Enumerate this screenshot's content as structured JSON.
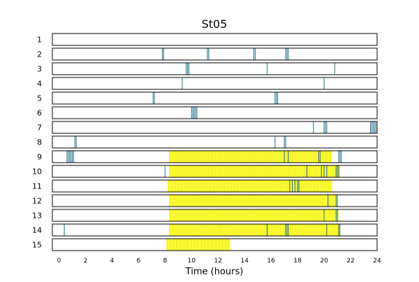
{
  "chart_data": {
    "type": "timeline",
    "title": "St05",
    "xlabel": "Time (hours)",
    "ylabel": "",
    "xlim": [
      -0.5,
      24
    ],
    "x_ticks": [
      0,
      2,
      4,
      6,
      8,
      10,
      12,
      14,
      16,
      18,
      20,
      22,
      24
    ],
    "grid": false,
    "colors": {
      "event": "#1f6f8b",
      "span": "#ffff33",
      "frame": "#000000"
    },
    "rows": [
      {
        "label": "1",
        "events": [],
        "spans": []
      },
      {
        "label": "2",
        "events": [
          7.8,
          7.9,
          11.2,
          11.3,
          14.7,
          14.8,
          17.1,
          17.2,
          17.3
        ],
        "spans": []
      },
      {
        "label": "3",
        "events": [
          9.6,
          9.7,
          9.8,
          15.7,
          20.8
        ],
        "spans": []
      },
      {
        "label": "4",
        "events": [
          9.3,
          20.0
        ],
        "spans": []
      },
      {
        "label": "5",
        "events": [
          7.1,
          7.2,
          16.3,
          16.4,
          16.5
        ],
        "spans": []
      },
      {
        "label": "6",
        "events": [
          10.0,
          10.1,
          10.2,
          10.3,
          10.4
        ],
        "spans": []
      },
      {
        "label": "7",
        "events": [
          19.2,
          20.0,
          20.1,
          20.2,
          23.5,
          23.6,
          23.7,
          23.8,
          23.9
        ],
        "spans": []
      },
      {
        "label": "8",
        "events": [
          1.2,
          1.3,
          16.3,
          17.0,
          17.1
        ],
        "spans": []
      },
      {
        "label": "9",
        "events": [
          0.6,
          0.7,
          0.8,
          0.9,
          1.0,
          1.1,
          17.0,
          17.3,
          19.6,
          19.7,
          21.1,
          21.2,
          21.3
        ],
        "spans": [
          [
            8.3,
            20.6
          ]
        ]
      },
      {
        "label": "10",
        "events": [
          8.0,
          18.7,
          19.8,
          20.0,
          20.2,
          20.9,
          21.0,
          21.1
        ],
        "spans": [
          [
            8.3,
            21.2
          ]
        ]
      },
      {
        "label": "11",
        "events": [
          17.4,
          17.6,
          17.8,
          18.0,
          18.1
        ],
        "spans": [
          [
            8.2,
            20.6
          ]
        ]
      },
      {
        "label": "12",
        "events": [
          20.3,
          20.9,
          21.0
        ],
        "spans": [
          [
            8.3,
            21.0
          ]
        ]
      },
      {
        "label": "13",
        "events": [
          20.0,
          20.9,
          21.0
        ],
        "spans": [
          [
            8.3,
            21.1
          ]
        ]
      },
      {
        "label": "14",
        "events": [
          0.4,
          15.7,
          17.1,
          17.2,
          17.3,
          20.2,
          21.1,
          21.2
        ],
        "spans": [
          [
            8.3,
            21.2
          ]
        ]
      },
      {
        "label": "15",
        "events": [],
        "spans": [
          [
            8.1,
            12.9
          ]
        ]
      }
    ]
  }
}
